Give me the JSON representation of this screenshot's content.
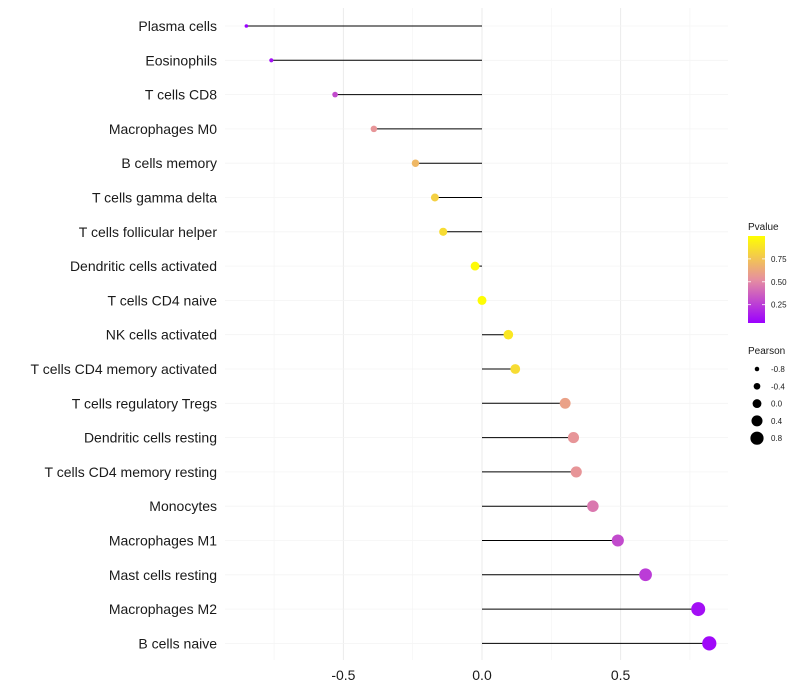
{
  "chart_data": {
    "type": "lollipop",
    "xlabel": "",
    "ylabel": "",
    "xlim": [
      -0.87,
      0.83
    ],
    "xticks": [
      -0.5,
      0.0,
      0.5
    ],
    "xtick_labels": [
      "-0.5",
      "0.0",
      "0.5"
    ],
    "categories": [
      "Plasma cells",
      "Eosinophils",
      "T cells CD8",
      "Macrophages M0",
      "B cells memory",
      "T cells gamma delta",
      "T cells follicular helper",
      "Dendritic cells activated",
      "T cells CD4 naive",
      "NK cells activated",
      "T cells CD4 memory activated",
      "T cells regulatory  Tregs ",
      "Dendritic cells resting",
      "T cells CD4 memory resting",
      "Monocytes",
      "Macrophages M1",
      "Mast cells resting",
      "Macrophages M2",
      "B cells naive"
    ],
    "pearson": [
      -0.85,
      -0.76,
      -0.53,
      -0.39,
      -0.24,
      -0.17,
      -0.14,
      -0.025,
      0.0,
      0.095,
      0.12,
      0.3,
      0.33,
      0.34,
      0.4,
      0.49,
      0.59,
      0.78,
      0.82
    ],
    "pvalue": [
      0.05,
      0.1,
      0.3,
      0.55,
      0.7,
      0.8,
      0.85,
      0.98,
      0.99,
      0.9,
      0.85,
      0.6,
      0.55,
      0.55,
      0.45,
      0.3,
      0.25,
      0.1,
      0.08
    ],
    "legend_color": {
      "title": "Pvalue",
      "ticks": [
        0.25,
        0.5,
        0.75
      ],
      "tick_labels": [
        "0.25",
        "0.50",
        "0.75"
      ],
      "range": [
        0.05,
        1.0
      ],
      "colors": [
        "#9b00ff",
        "#e68fa0",
        "#ffff00"
      ]
    },
    "legend_size": {
      "title": "Pearson",
      "values": [
        -0.8,
        -0.4,
        0.0,
        0.4,
        0.8
      ],
      "labels": [
        "-0.8",
        "-0.4",
        "0.0",
        "0.4",
        "0.8"
      ]
    },
    "grid": true
  }
}
